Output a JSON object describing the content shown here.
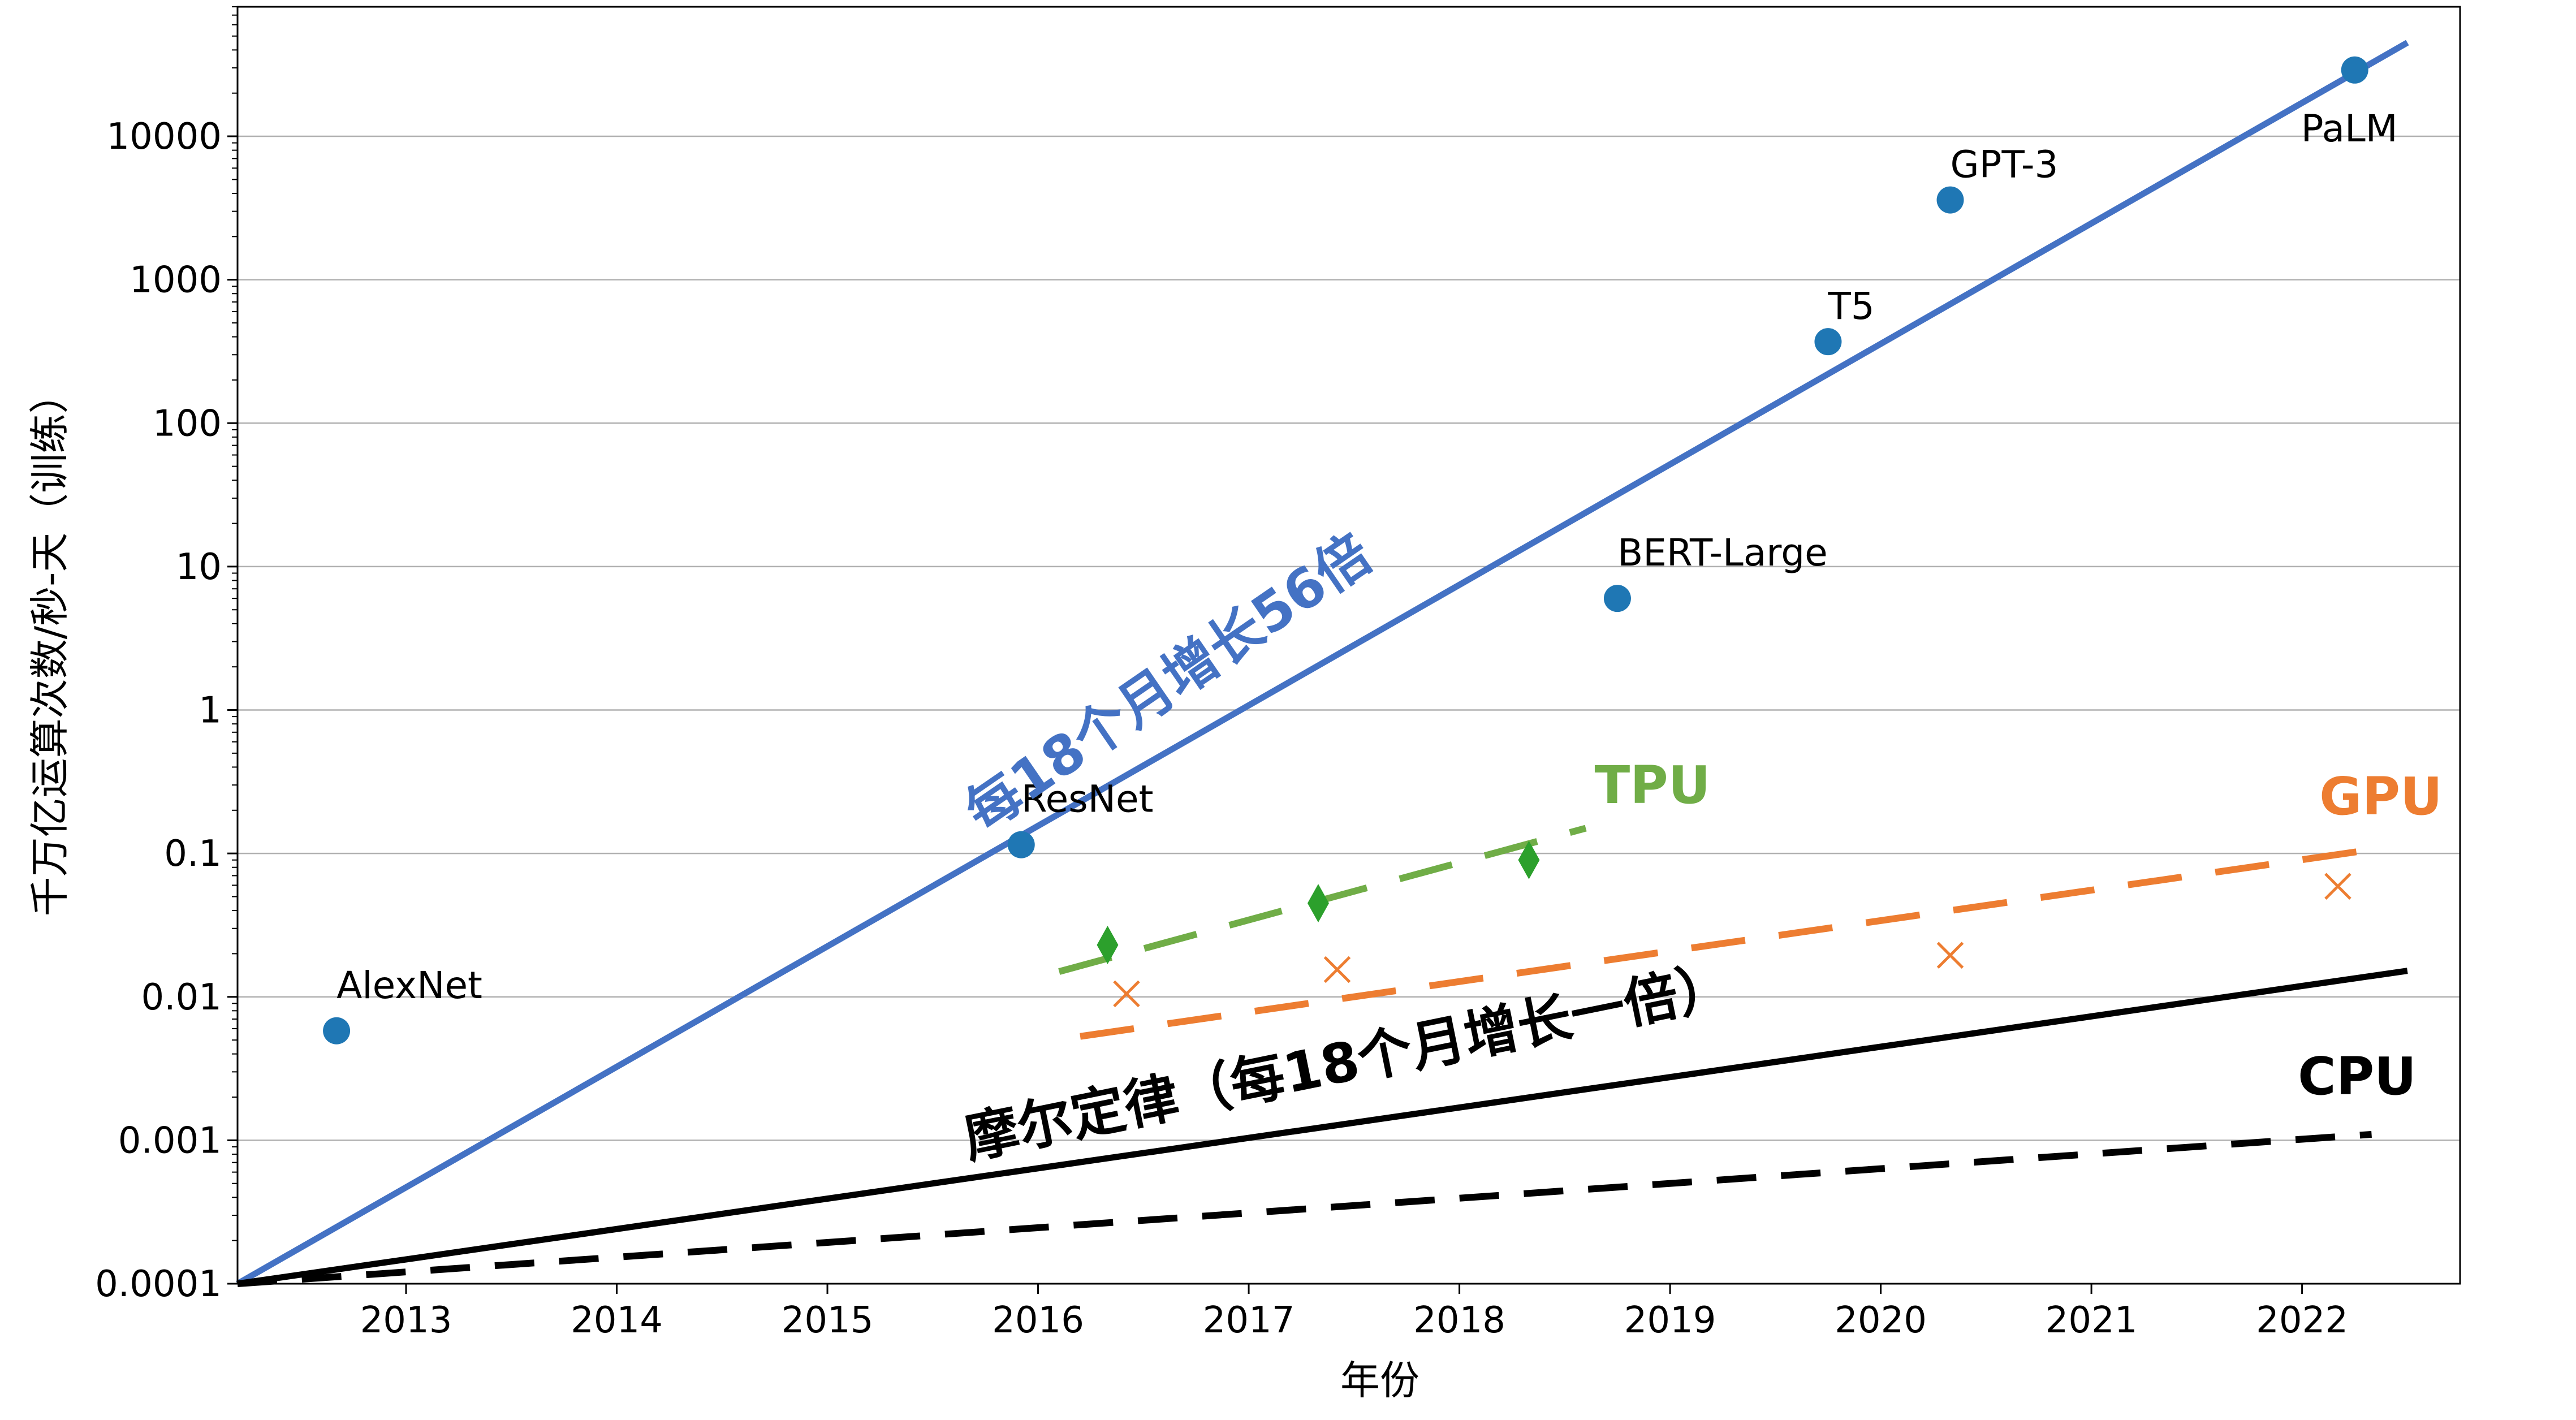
{
  "chart_data": {
    "type": "scatter",
    "xlabel": "年份",
    "ylabel": "千万亿运算次数/秒-天（训练）",
    "xlim": [
      2012.2,
      2022.75
    ],
    "ylim": [
      0.0001,
      80000
    ],
    "y_scale": "log",
    "grid": "horizontal",
    "x_ticks": [
      2013,
      2014,
      2015,
      2016,
      2017,
      2018,
      2019,
      2020,
      2021,
      2022
    ],
    "y_ticks": [
      {
        "value": 0.0001,
        "label": "0.0001"
      },
      {
        "value": 0.001,
        "label": "0.001"
      },
      {
        "value": 0.01,
        "label": "0.01"
      },
      {
        "value": 0.1,
        "label": "0.1"
      },
      {
        "value": 1,
        "label": "1"
      },
      {
        "value": 10,
        "label": "10"
      },
      {
        "value": 100,
        "label": "100"
      },
      {
        "value": 1000,
        "label": "1000"
      },
      {
        "value": 10000,
        "label": "10000"
      }
    ],
    "models": [
      {
        "name": "AlexNet",
        "x": 2012.67,
        "y": 0.0058
      },
      {
        "name": "ResNet",
        "x": 2015.92,
        "y": 0.115
      },
      {
        "name": "BERT-Large",
        "x": 2018.75,
        "y": 6.0
      },
      {
        "name": "T5",
        "x": 2019.75,
        "y": 370
      },
      {
        "name": "GPT-3",
        "x": 2020.33,
        "y": 3600
      },
      {
        "name": "PaLM",
        "x": 2022.25,
        "y": 29000
      }
    ],
    "tpu_points": [
      {
        "x": 2016.33,
        "y": 0.023
      },
      {
        "x": 2017.33,
        "y": 0.045
      },
      {
        "x": 2018.33,
        "y": 0.09
      }
    ],
    "gpu_points": [
      {
        "x": 2016.42,
        "y": 0.0105
      },
      {
        "x": 2017.42,
        "y": 0.0155
      },
      {
        "x": 2020.33,
        "y": 0.0195
      },
      {
        "x": 2022.17,
        "y": 0.059
      }
    ],
    "trend_lines": [
      {
        "key": "model_trend",
        "x": [
          2012.2,
          2022.5
        ],
        "y": [
          0.0001,
          45000
        ],
        "style": "solid",
        "color": "#4472c4"
      },
      {
        "key": "moore",
        "x": [
          2012.2,
          2022.5
        ],
        "y": [
          0.0001,
          0.0152
        ],
        "style": "solid",
        "color": "#000000"
      },
      {
        "key": "cpu_trend",
        "x": [
          2012.2,
          2022.33
        ],
        "y": [
          0.0001,
          0.0011
        ],
        "style": "dashed",
        "color": "#000000"
      },
      {
        "key": "tpu_trend",
        "x": [
          2016.1,
          2018.6
        ],
        "y": [
          0.015,
          0.15
        ],
        "style": "dashed",
        "color": "#70ad47"
      },
      {
        "key": "gpu_trend",
        "x": [
          2016.2,
          2022.4
        ],
        "y": [
          0.0053,
          0.11
        ],
        "style": "dashed",
        "color": "#ed7d31"
      }
    ],
    "annotations": {
      "model_trend": "每18个月增长56倍",
      "moore": "摩尔定律（每18个月增长一倍）",
      "tpu": "TPU",
      "gpu": "GPU",
      "cpu": "CPU"
    },
    "colors": {
      "model_points": "#1f77b4",
      "model_trend": "#4472c4",
      "tpu": "#2ca02c",
      "tpu_trend": "#70ad47",
      "gpu": "#ed7d31",
      "moore": "#000000",
      "cpu": "#000000"
    }
  }
}
